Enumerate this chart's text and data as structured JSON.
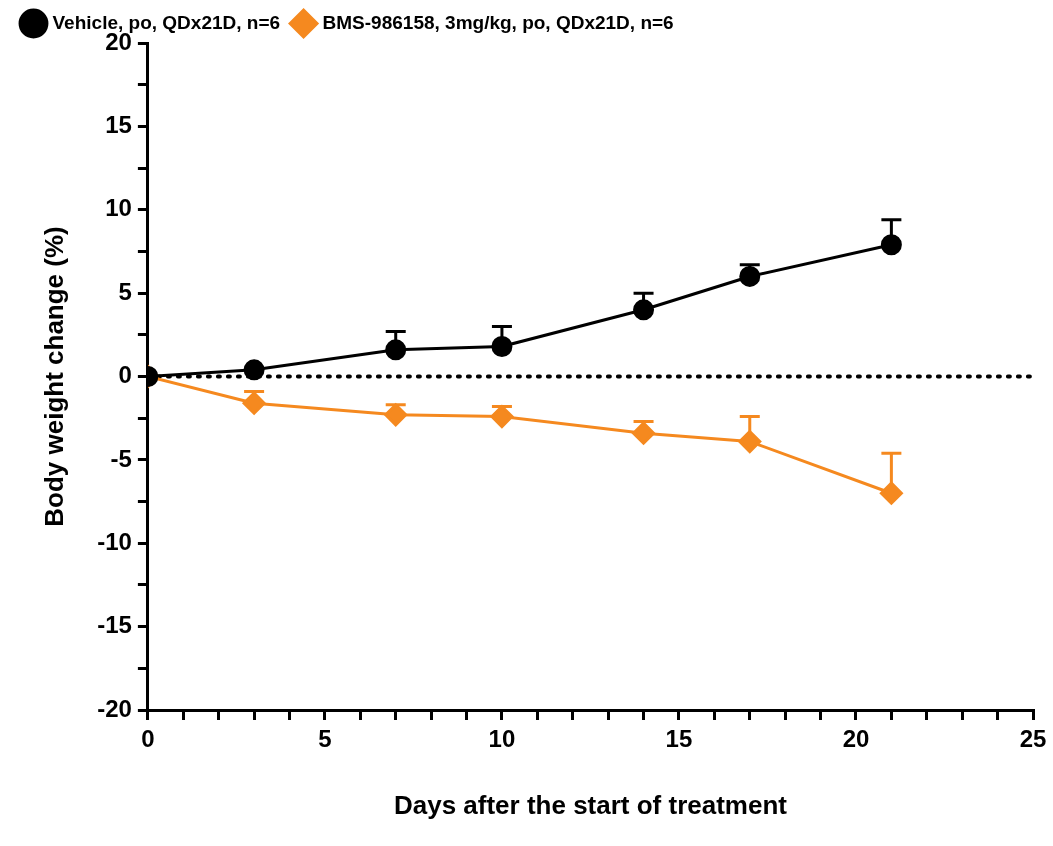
{
  "chart_data": {
    "type": "line",
    "xlabel": "Days after the start of treatment",
    "ylabel": "Body weight change (%)",
    "x": [
      0,
      3,
      7,
      10,
      14,
      17,
      21
    ],
    "series": [
      {
        "name": "Vehicle, po, QDx21D, n=6",
        "color": "#000000",
        "marker": "circle",
        "values": [
          0,
          0.4,
          1.6,
          1.8,
          4.0,
          6.0,
          7.9
        ],
        "errors": [
          null,
          null,
          [
            1.6,
            2.7
          ],
          [
            1.8,
            3.0
          ],
          [
            4.0,
            5.0
          ],
          [
            6.0,
            6.7
          ],
          [
            7.9,
            9.4
          ]
        ]
      },
      {
        "name": "BMS-986158, 3mg/kg, po, QDx21D, n=6",
        "color": "#f5891f",
        "marker": "diamond",
        "values": [
          0,
          -1.6,
          -2.3,
          -2.4,
          -3.4,
          -3.9,
          -7.0
        ],
        "errors": [
          null,
          [
            -1.6,
            -0.9
          ],
          [
            -2.3,
            -1.7
          ],
          [
            -2.4,
            -1.8
          ],
          [
            -3.4,
            -2.7
          ],
          [
            -3.9,
            -2.4
          ],
          [
            -7.0,
            -4.6
          ]
        ]
      }
    ],
    "xlim": [
      0,
      25
    ],
    "ylim": [
      -20,
      20
    ],
    "xticks": [
      0,
      {
        "value": 1,
        "label": null
      },
      {
        "value": 2,
        "label": null
      },
      {
        "value": 3,
        "label": null
      },
      {
        "value": 4,
        "label": null
      },
      5,
      {
        "value": 6,
        "label": null
      },
      {
        "value": 7,
        "label": null
      },
      {
        "value": 8,
        "label": null
      },
      {
        "value": 9,
        "label": null
      },
      10,
      {
        "value": 11,
        "label": null
      },
      {
        "value": 12,
        "label": null
      },
      {
        "value": 13,
        "label": null
      },
      {
        "value": 14,
        "label": null
      },
      15,
      {
        "value": 16,
        "label": null
      },
      {
        "value": 17,
        "label": null
      },
      {
        "value": 18,
        "label": null
      },
      {
        "value": 19,
        "label": null
      },
      20,
      {
        "value": 21,
        "label": null
      },
      {
        "value": 22,
        "label": null
      },
      {
        "value": 23,
        "label": null
      },
      {
        "value": 24,
        "label": null
      },
      25
    ],
    "yticks": [
      -20,
      {
        "value": -17.5,
        "label": null
      },
      -15,
      {
        "value": -12.5,
        "label": null
      },
      -10,
      {
        "value": -7.5,
        "label": null
      },
      -5,
      {
        "value": -2.5,
        "label": null
      },
      0,
      {
        "value": 2.5,
        "label": null
      },
      5,
      {
        "value": 7.5,
        "label": null
      },
      10,
      {
        "value": 12.5,
        "label": null
      },
      15,
      {
        "value": 17.5,
        "label": null
      },
      20
    ],
    "ref_lines": [
      {
        "axis": "y",
        "value": 0,
        "line_style": "dotted",
        "color": "#000000"
      }
    ],
    "legend": "top left",
    "line_style": "solid"
  }
}
